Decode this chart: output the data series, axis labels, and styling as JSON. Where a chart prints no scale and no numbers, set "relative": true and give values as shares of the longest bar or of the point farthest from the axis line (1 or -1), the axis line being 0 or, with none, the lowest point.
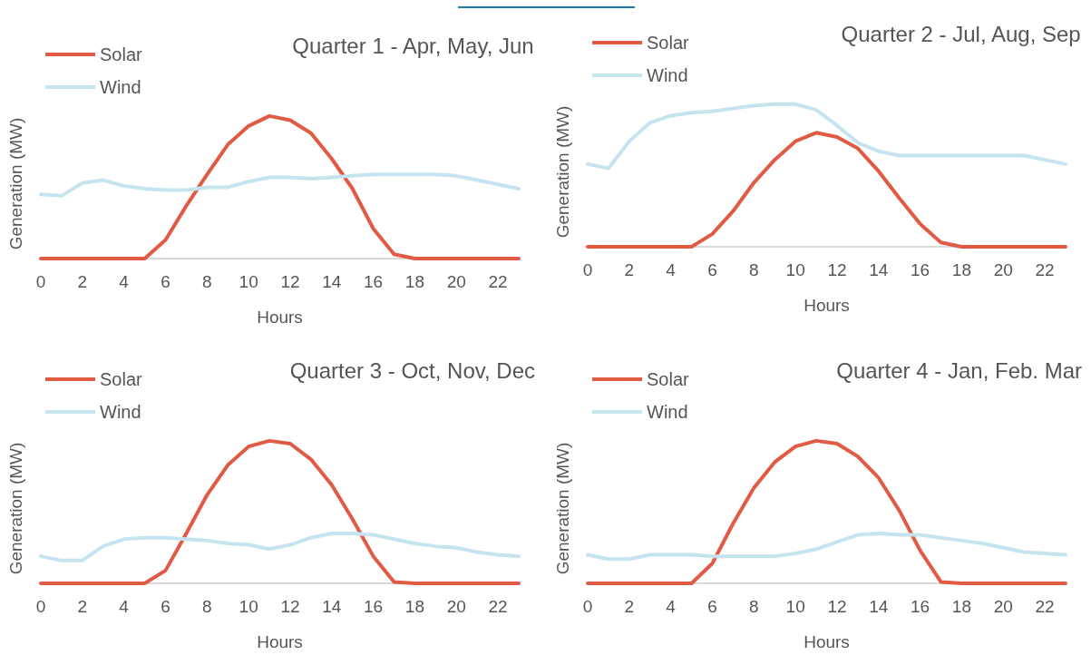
{
  "chart_data": [
    {
      "type": "line",
      "title": "Quarter 1 - Apr, May, Jun",
      "xlabel": "Hours",
      "ylabel": "Generation (MW)",
      "relative": true,
      "legend": "top left",
      "grid": false,
      "marker": "none",
      "line_style": "solid",
      "x": [
        0,
        1,
        2,
        3,
        4,
        5,
        6,
        7,
        8,
        9,
        10,
        11,
        12,
        13,
        14,
        15,
        16,
        17,
        18,
        19,
        20,
        21,
        22,
        23
      ],
      "xlim": [
        0,
        23
      ],
      "xticks": [
        0,
        2,
        4,
        6,
        8,
        10,
        12,
        14,
        16,
        18,
        20,
        22
      ],
      "series": [
        {
          "name": "Solar",
          "color": "#e05a44",
          "values": [
            0,
            0,
            0,
            0,
            0,
            0,
            0.13,
            0.37,
            0.59,
            0.8,
            0.93,
            1,
            0.97,
            0.88,
            0.7,
            0.49,
            0.21,
            0.03,
            0,
            0,
            0,
            0,
            0,
            0
          ]
        },
        {
          "name": "Wind",
          "color": "#c5e4f0",
          "values": [
            0.45,
            0.44,
            0.53,
            0.55,
            0.51,
            0.49,
            0.48,
            0.48,
            0.5,
            0.5,
            0.54,
            0.57,
            0.57,
            0.56,
            0.57,
            0.58,
            0.59,
            0.59,
            0.59,
            0.59,
            0.58,
            0.55,
            0.52,
            0.49
          ]
        }
      ]
    },
    {
      "type": "line",
      "title": "Quarter 2 - Jul, Aug, Sep",
      "xlabel": "Hours",
      "ylabel": "Generation (MW)",
      "relative": true,
      "legend": "top left",
      "grid": false,
      "marker": "none",
      "line_style": "solid",
      "x": [
        0,
        1,
        2,
        3,
        4,
        5,
        6,
        7,
        8,
        9,
        10,
        11,
        12,
        13,
        14,
        15,
        16,
        17,
        18,
        19,
        20,
        21,
        22,
        23
      ],
      "xlim": [
        0,
        23
      ],
      "xticks": [
        0,
        2,
        4,
        6,
        8,
        10,
        12,
        14,
        16,
        18,
        20,
        22
      ],
      "series": [
        {
          "name": "Solar",
          "color": "#e05a44",
          "values": [
            0,
            0,
            0,
            0,
            0,
            0,
            0.09,
            0.25,
            0.45,
            0.61,
            0.74,
            0.8,
            0.77,
            0.69,
            0.53,
            0.34,
            0.16,
            0.03,
            0,
            0,
            0,
            0,
            0,
            0
          ]
        },
        {
          "name": "Wind",
          "color": "#c5e4f0",
          "values": [
            0.58,
            0.55,
            0.74,
            0.87,
            0.92,
            0.94,
            0.95,
            0.97,
            0.99,
            1,
            1,
            0.96,
            0.85,
            0.73,
            0.67,
            0.64,
            0.64,
            0.64,
            0.64,
            0.64,
            0.64,
            0.64,
            0.61,
            0.58
          ]
        }
      ]
    },
    {
      "type": "line",
      "title": "Quarter 3 - Oct, Nov, Dec",
      "xlabel": "Hours",
      "ylabel": "Generation (MW)",
      "relative": true,
      "legend": "top left",
      "grid": false,
      "marker": "none",
      "line_style": "solid",
      "x": [
        0,
        1,
        2,
        3,
        4,
        5,
        6,
        7,
        8,
        9,
        10,
        11,
        12,
        13,
        14,
        15,
        16,
        17,
        18,
        19,
        20,
        21,
        22,
        23
      ],
      "xlim": [
        0,
        23
      ],
      "xticks": [
        0,
        2,
        4,
        6,
        8,
        10,
        12,
        14,
        16,
        18,
        20,
        22
      ],
      "series": [
        {
          "name": "Solar",
          "color": "#e05a44",
          "values": [
            0,
            0,
            0,
            0,
            0,
            0,
            0.09,
            0.35,
            0.62,
            0.83,
            0.96,
            1,
            0.98,
            0.87,
            0.69,
            0.45,
            0.19,
            0.01,
            0,
            0,
            0,
            0,
            0,
            0
          ]
        },
        {
          "name": "Wind",
          "color": "#c5e4f0",
          "values": [
            0.19,
            0.16,
            0.16,
            0.26,
            0.31,
            0.32,
            0.32,
            0.31,
            0.3,
            0.28,
            0.27,
            0.24,
            0.27,
            0.32,
            0.35,
            0.35,
            0.34,
            0.31,
            0.28,
            0.26,
            0.25,
            0.22,
            0.2,
            0.19
          ]
        }
      ]
    },
    {
      "type": "line",
      "title": "Quarter 4 - Jan, Feb. Mar",
      "xlabel": "Hours",
      "ylabel": "Generation (MW)",
      "relative": true,
      "legend": "top left",
      "grid": false,
      "marker": "none",
      "line_style": "solid",
      "x": [
        0,
        1,
        2,
        3,
        4,
        5,
        6,
        7,
        8,
        9,
        10,
        11,
        12,
        13,
        14,
        15,
        16,
        17,
        18,
        19,
        20,
        21,
        22,
        23
      ],
      "xlim": [
        0,
        23
      ],
      "xticks": [
        0,
        2,
        4,
        6,
        8,
        10,
        12,
        14,
        16,
        18,
        20,
        22
      ],
      "series": [
        {
          "name": "Solar",
          "color": "#e05a44",
          "values": [
            0,
            0,
            0,
            0,
            0,
            0,
            0.14,
            0.42,
            0.67,
            0.85,
            0.96,
            1,
            0.98,
            0.89,
            0.74,
            0.51,
            0.23,
            0.01,
            0,
            0,
            0,
            0,
            0,
            0
          ]
        },
        {
          "name": "Wind",
          "color": "#c5e4f0",
          "values": [
            0.2,
            0.17,
            0.17,
            0.2,
            0.2,
            0.2,
            0.19,
            0.19,
            0.19,
            0.19,
            0.21,
            0.24,
            0.29,
            0.34,
            0.35,
            0.34,
            0.34,
            0.32,
            0.3,
            0.28,
            0.25,
            0.22,
            0.21,
            0.2
          ]
        }
      ]
    }
  ]
}
